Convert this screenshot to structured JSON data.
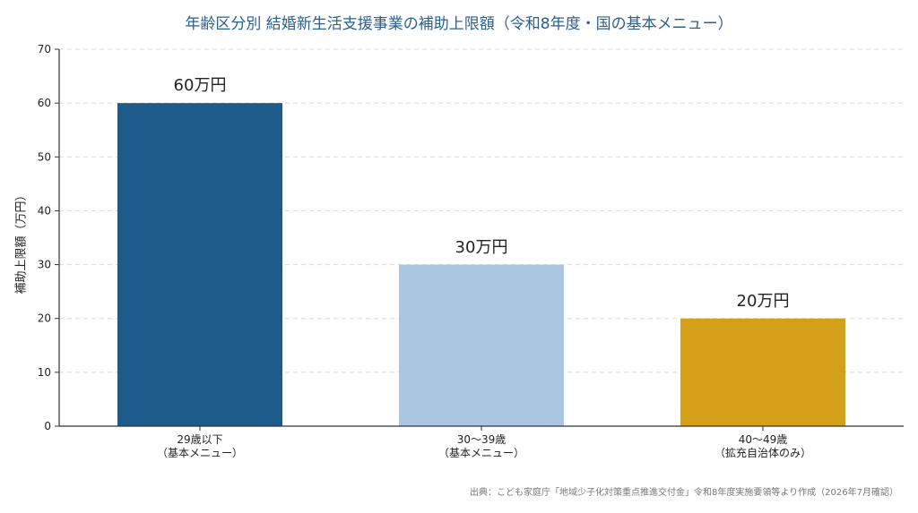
{
  "chart_data": {
    "type": "bar",
    "title": "年齢区分別 結婚新生活支援事業の補助上限額（令和8年度・国の基本メニュー）",
    "ylabel": "補助上限額（万円）",
    "xlabel": "",
    "categories": [
      "29歳以下\n（基本メニュー）",
      "30〜39歳\n（基本メニュー）",
      "40〜49歳\n（拡充自治体のみ）"
    ],
    "values": [
      60,
      30,
      20
    ],
    "value_labels": [
      "60万円",
      "30万円",
      "20万円"
    ],
    "colors": [
      "#1f5b8a",
      "#aac6e1",
      "#d4a017"
    ],
    "ylim": [
      0,
      70
    ],
    "yticks": [
      "0",
      "10",
      "20",
      "30",
      "40",
      "50",
      "60",
      "70"
    ],
    "grid": true,
    "grid_axis": "y",
    "source_note": "出典：こども家庭庁「地域少子化対策重点推進交付金」令和8年度実施要領等より作成（2026年7月確認）"
  }
}
